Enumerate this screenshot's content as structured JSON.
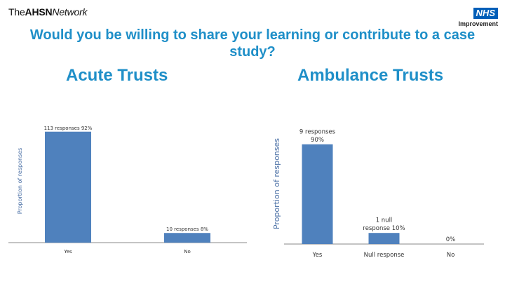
{
  "header": {
    "logo_prefix": "The",
    "logo_bold": "AHSN",
    "logo_suffix": "Network",
    "nhs_badge": "NHS",
    "nhs_sub": "Improvement",
    "title": "Would you be willing to share your learning or contribute to a case study?"
  },
  "colors": {
    "bar": "#4f81bd",
    "title": "#1f8fc8",
    "nhs": "#005eb8"
  },
  "chart_data": [
    {
      "type": "bar",
      "title": "Acute Trusts",
      "ylabel": "Proportion of responses",
      "categories": [
        "Yes",
        "No"
      ],
      "values": [
        92,
        8
      ],
      "data_labels": [
        "113 responses 92%",
        "10 responses 8%"
      ],
      "ylim": [
        0,
        100
      ],
      "grid": false
    },
    {
      "type": "bar",
      "title": "Ambulance Trusts",
      "ylabel": "Proportion of responses",
      "categories": [
        "Yes",
        "Null response",
        "No"
      ],
      "values": [
        90,
        10,
        0
      ],
      "data_labels": [
        [
          "9 responses",
          "90%"
        ],
        [
          "1 null",
          "response 10%"
        ],
        [
          "0%"
        ]
      ],
      "ylim": [
        0,
        100
      ],
      "grid": false
    }
  ]
}
